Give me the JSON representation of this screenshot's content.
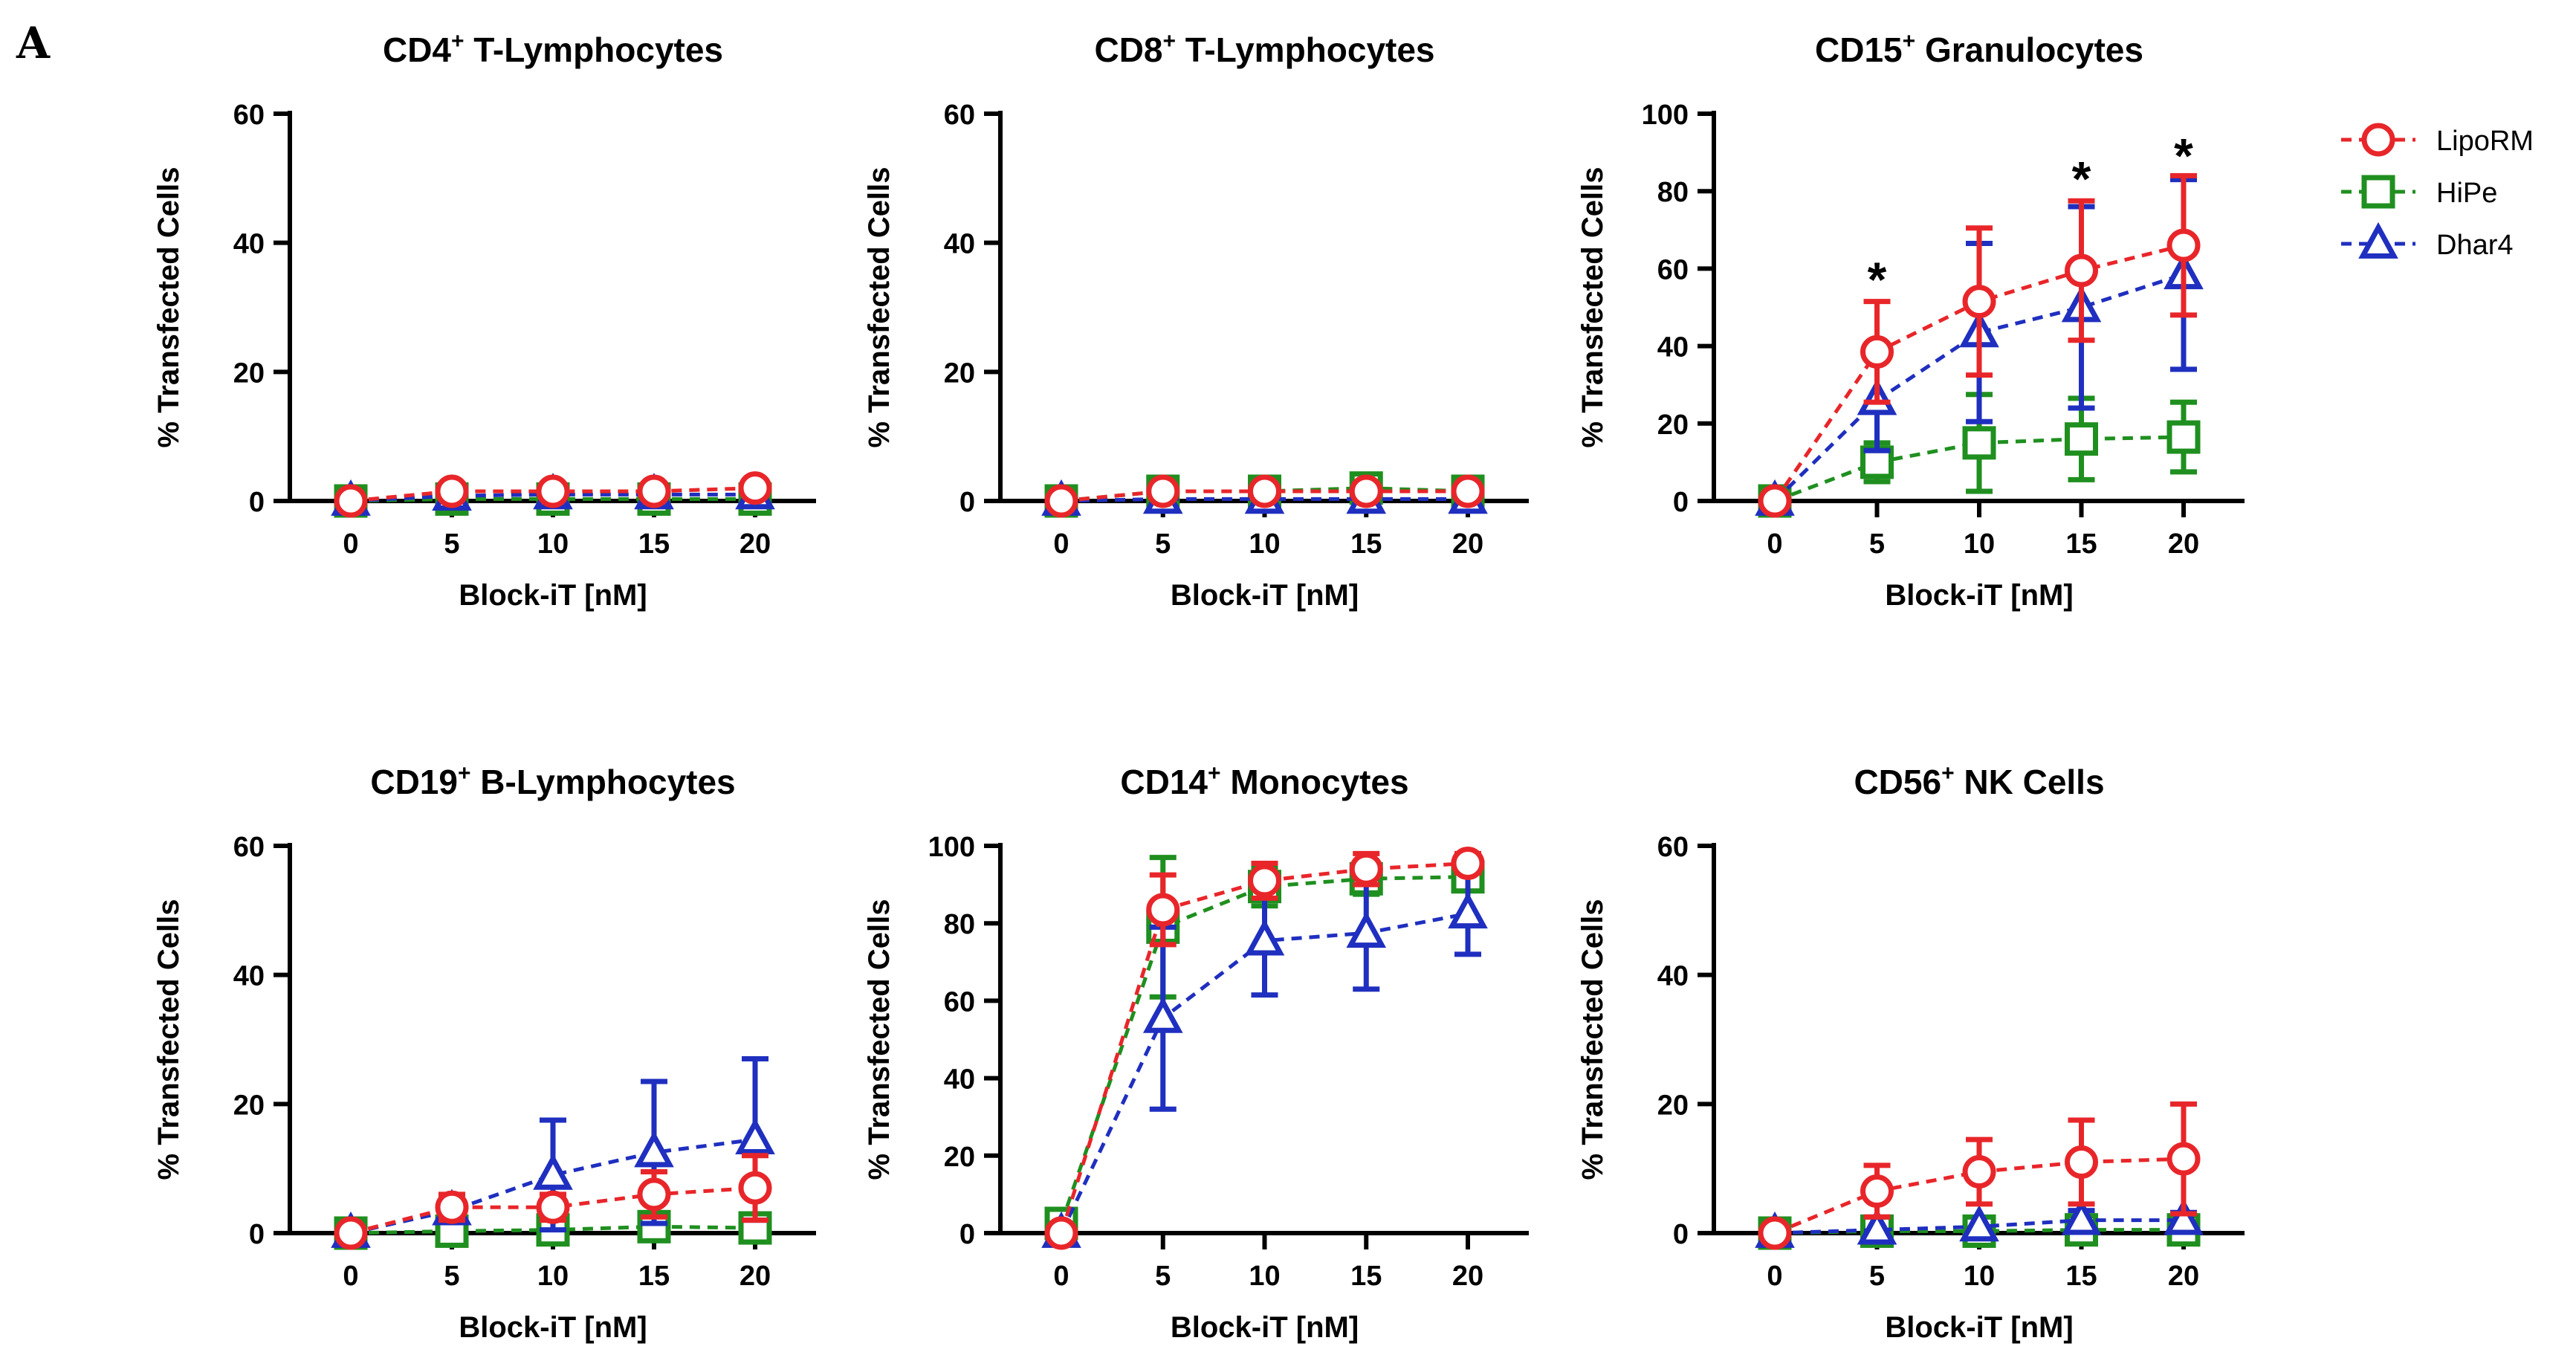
{
  "figure_label": "A",
  "legend": [
    {
      "name": "LipoRM",
      "color": "#e8262a",
      "marker": "circle"
    },
    {
      "name": "HiPe",
      "color": "#1f8f1f",
      "marker": "square"
    },
    {
      "name": "Dhar4",
      "color": "#1f2fbf",
      "marker": "triangle"
    }
  ],
  "chart_data": [
    {
      "type": "line",
      "title": "CD4",
      "title_sup": "+",
      "title_rest": " T-Lymphocytes",
      "xlabel": "Block-iT [nM]",
      "ylabel": "% Transfected Cells",
      "x": [
        0,
        5,
        10,
        15,
        20
      ],
      "ylim": [
        0,
        60
      ],
      "yticks": [
        0,
        20,
        40,
        60
      ],
      "series": [
        {
          "name": "LipoRM",
          "values": [
            0,
            1.5,
            1.5,
            1.5,
            2
          ],
          "err": [
            0.5,
            1,
            1,
            1,
            1.2
          ]
        },
        {
          "name": "HiPe",
          "values": [
            0,
            0.3,
            0.3,
            0.3,
            0.3
          ],
          "err": [
            0.3,
            0.3,
            0.3,
            0.3,
            0.3
          ]
        },
        {
          "name": "Dhar4",
          "values": [
            0,
            0.8,
            1,
            1,
            1
          ],
          "err": [
            0.3,
            0.5,
            0.5,
            0.5,
            0.5
          ]
        }
      ],
      "annotations": []
    },
    {
      "type": "line",
      "title": "CD8",
      "title_sup": "+",
      "title_rest": " T-Lymphocytes",
      "xlabel": "Block-iT [nM]",
      "ylabel": "% Transfected Cells",
      "x": [
        0,
        5,
        10,
        15,
        20
      ],
      "ylim": [
        0,
        60
      ],
      "yticks": [
        0,
        20,
        40,
        60
      ],
      "series": [
        {
          "name": "LipoRM",
          "values": [
            0,
            1.5,
            1.5,
            1.5,
            1.5
          ],
          "err": [
            0.5,
            1,
            1,
            1,
            1
          ]
        },
        {
          "name": "HiPe",
          "values": [
            0,
            1.5,
            1.5,
            2,
            1.5
          ],
          "err": [
            0.5,
            1,
            1,
            2,
            1.2
          ]
        },
        {
          "name": "Dhar4",
          "values": [
            0,
            0.3,
            0.3,
            0.3,
            0.3
          ],
          "err": [
            0.3,
            0.3,
            0.3,
            0.3,
            0.3
          ]
        }
      ],
      "annotations": []
    },
    {
      "type": "line",
      "title": "CD15",
      "title_sup": "+",
      "title_rest": " Granulocytes",
      "xlabel": "Block-iT [nM]",
      "ylabel": "% Transfected Cells",
      "x": [
        0,
        5,
        10,
        15,
        20
      ],
      "ylim": [
        0,
        100
      ],
      "yticks": [
        0,
        20,
        40,
        60,
        80,
        100
      ],
      "series": [
        {
          "name": "LipoRM",
          "values": [
            0,
            38.5,
            51.5,
            59.5,
            66
          ],
          "err": [
            0.5,
            13,
            19,
            18,
            18
          ]
        },
        {
          "name": "HiPe",
          "values": [
            0,
            10,
            15,
            16,
            16.5
          ],
          "err": [
            0.5,
            5,
            12.5,
            10.5,
            9
          ]
        },
        {
          "name": "Dhar4",
          "values": [
            0,
            26,
            43.5,
            50,
            58.5
          ],
          "err": [
            0.5,
            13,
            23,
            26,
            24.5
          ]
        }
      ],
      "annotations": [
        {
          "x": 5,
          "text": "*",
          "y": 57
        },
        {
          "x": 15,
          "text": "*",
          "y": 83
        },
        {
          "x": 20,
          "text": "*",
          "y": 89
        }
      ]
    },
    {
      "type": "line",
      "title": "CD19",
      "title_sup": "+",
      "title_rest": " B-Lymphocytes",
      "xlabel": "Block-iT [nM]",
      "ylabel": "% Transfected Cells",
      "x": [
        0,
        5,
        10,
        15,
        20
      ],
      "ylim": [
        0,
        60
      ],
      "yticks": [
        0,
        20,
        40,
        60
      ],
      "series": [
        {
          "name": "LipoRM",
          "values": [
            0,
            4,
            4,
            6,
            7
          ],
          "err": [
            0.5,
            2,
            2,
            3.5,
            5
          ]
        },
        {
          "name": "HiPe",
          "values": [
            0,
            0.3,
            0.5,
            1,
            0.8
          ],
          "err": [
            0.3,
            0.5,
            0.5,
            1,
            1
          ]
        },
        {
          "name": "Dhar4",
          "values": [
            0,
            3.5,
            9,
            12.5,
            14.5
          ],
          "err": [
            0.5,
            1.5,
            8.5,
            11,
            12.5
          ]
        }
      ],
      "annotations": []
    },
    {
      "type": "line",
      "title": "CD14",
      "title_sup": "+",
      "title_rest": " Monocytes",
      "xlabel": "Block-iT [nM]",
      "ylabel": "% Transfected Cells",
      "x": [
        0,
        5,
        10,
        15,
        20
      ],
      "ylim": [
        0,
        100
      ],
      "yticks": [
        0,
        20,
        40,
        60,
        80,
        100
      ],
      "series": [
        {
          "name": "LipoRM",
          "values": [
            0,
            83.5,
            91,
            94,
            95.5
          ],
          "err": [
            0.5,
            9,
            4.5,
            4,
            2.5
          ]
        },
        {
          "name": "HiPe",
          "values": [
            2.5,
            79,
            89.5,
            91.5,
            92
          ],
          "err": [
            1,
            18,
            5,
            4,
            3.5
          ]
        },
        {
          "name": "Dhar4",
          "values": [
            0,
            55.5,
            75.5,
            77.5,
            82.5
          ],
          "err": [
            0.5,
            23.5,
            14,
            14.5,
            10.5
          ]
        }
      ],
      "annotations": []
    },
    {
      "type": "line",
      "title": "CD56",
      "title_sup": "+",
      "title_rest": " NK Cells",
      "xlabel": "Block-iT [nM]",
      "ylabel": "% Transfected Cells",
      "x": [
        0,
        5,
        10,
        15,
        20
      ],
      "ylim": [
        0,
        60
      ],
      "yticks": [
        0,
        20,
        40,
        60
      ],
      "series": [
        {
          "name": "LipoRM",
          "values": [
            0,
            6.5,
            9.5,
            11,
            11.5
          ],
          "err": [
            0.5,
            4,
            5,
            6.5,
            8.5
          ]
        },
        {
          "name": "HiPe",
          "values": [
            0,
            0.3,
            0.3,
            0.5,
            0.5
          ],
          "err": [
            0.3,
            0.3,
            0.3,
            0.5,
            0.5
          ]
        },
        {
          "name": "Dhar4",
          "values": [
            0,
            0.5,
            1,
            2,
            2
          ],
          "err": [
            0.3,
            0.5,
            0.7,
            1.5,
            1.2
          ]
        }
      ],
      "annotations": []
    }
  ]
}
